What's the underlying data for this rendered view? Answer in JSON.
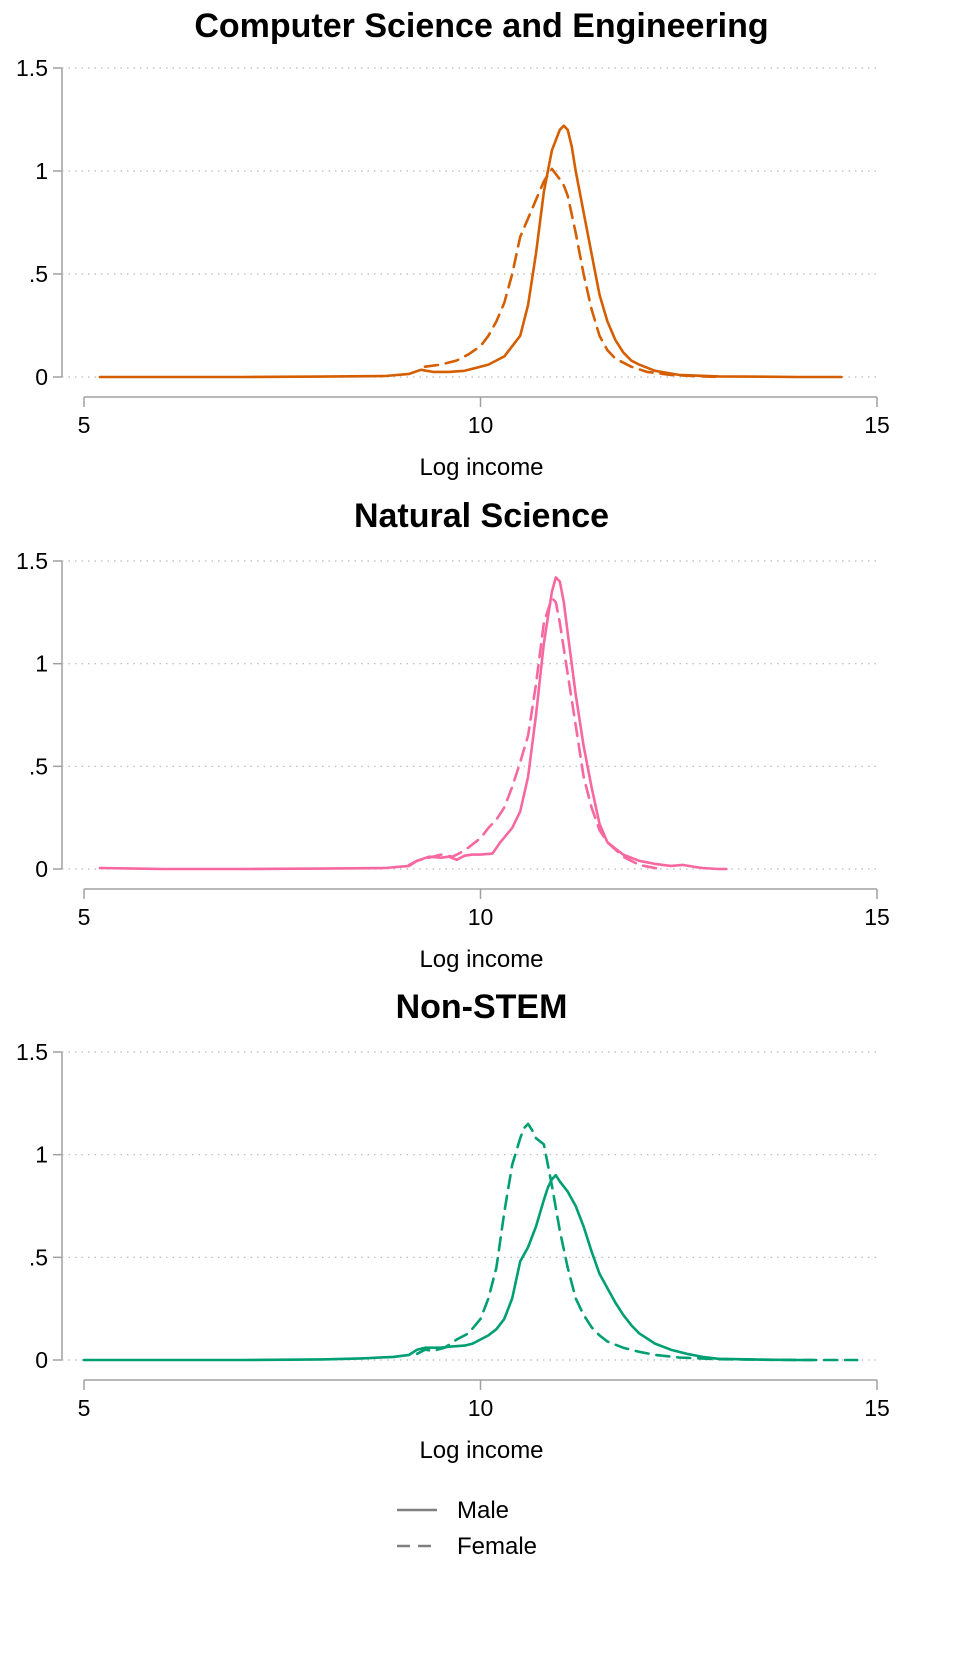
{
  "chart_data": [
    {
      "type": "line",
      "title": "Computer Science and Engineering",
      "xlabel": "Log income",
      "ylabel": "",
      "xlim": [
        5,
        15
      ],
      "ylim": [
        0,
        1.5
      ],
      "xticks": [
        "5",
        "10",
        "15"
      ],
      "yticks": [
        "0",
        ".5",
        "1",
        "1.5"
      ],
      "grid": "horizontal dotted",
      "color": "#D55E00",
      "series": [
        {
          "name": "Male",
          "style": "solid",
          "x": [
            5.2,
            6.0,
            7.0,
            8.0,
            8.8,
            9.1,
            9.25,
            9.4,
            9.6,
            9.8,
            9.95,
            10.1,
            10.3,
            10.5,
            10.6,
            10.7,
            10.8,
            10.9,
            11.0,
            11.05,
            11.1,
            11.15,
            11.2,
            11.3,
            11.4,
            11.5,
            11.6,
            11.7,
            11.8,
            11.9,
            12.0,
            12.2,
            12.5,
            13.0,
            14.0,
            14.55
          ],
          "y": [
            0,
            0,
            0,
            0.002,
            0.005,
            0.015,
            0.035,
            0.025,
            0.025,
            0.03,
            0.045,
            0.06,
            0.1,
            0.2,
            0.35,
            0.6,
            0.9,
            1.1,
            1.2,
            1.22,
            1.2,
            1.12,
            1.0,
            0.8,
            0.6,
            0.4,
            0.27,
            0.18,
            0.12,
            0.08,
            0.06,
            0.03,
            0.01,
            0.003,
            0,
            0
          ]
        },
        {
          "name": "Female",
          "style": "dashed",
          "x": [
            9.3,
            9.5,
            9.7,
            9.85,
            10.0,
            10.1,
            10.2,
            10.3,
            10.4,
            10.5,
            10.6,
            10.7,
            10.8,
            10.9,
            11.0,
            11.05,
            11.1,
            11.2,
            11.3,
            11.4,
            11.5,
            11.6,
            11.7,
            11.9,
            12.1,
            12.4,
            12.8,
            13.0
          ],
          "y": [
            0.05,
            0.06,
            0.08,
            0.11,
            0.15,
            0.2,
            0.27,
            0.36,
            0.5,
            0.68,
            0.77,
            0.86,
            0.95,
            1.01,
            0.96,
            0.93,
            0.88,
            0.7,
            0.5,
            0.33,
            0.2,
            0.13,
            0.09,
            0.05,
            0.025,
            0.01,
            0.003,
            0
          ]
        }
      ]
    },
    {
      "type": "line",
      "title": "Natural Science",
      "xlabel": "Log income",
      "ylabel": "",
      "xlim": [
        5,
        15
      ],
      "ylim": [
        0,
        1.5
      ],
      "xticks": [
        "5",
        "10",
        "15"
      ],
      "yticks": [
        "0",
        ".5",
        "1",
        "1.5"
      ],
      "grid": "horizontal dotted",
      "color": "#F768A1",
      "series": [
        {
          "name": "Male",
          "style": "solid",
          "x": [
            5.2,
            6.0,
            7.0,
            8.0,
            8.8,
            9.1,
            9.2,
            9.35,
            9.5,
            9.6,
            9.7,
            9.8,
            9.9,
            10.0,
            10.15,
            10.25,
            10.4,
            10.5,
            10.6,
            10.7,
            10.8,
            10.9,
            10.95,
            11.0,
            11.05,
            11.1,
            11.15,
            11.2,
            11.3,
            11.4,
            11.5,
            11.6,
            11.7,
            11.8,
            12.0,
            12.2,
            12.4,
            12.55,
            12.7,
            12.8,
            13.0,
            13.1
          ],
          "y": [
            0.005,
            0,
            0,
            0.002,
            0.005,
            0.015,
            0.04,
            0.06,
            0.055,
            0.06,
            0.045,
            0.065,
            0.07,
            0.07,
            0.075,
            0.13,
            0.2,
            0.28,
            0.45,
            0.75,
            1.1,
            1.35,
            1.42,
            1.4,
            1.3,
            1.15,
            1.0,
            0.85,
            0.6,
            0.4,
            0.22,
            0.13,
            0.1,
            0.07,
            0.04,
            0.025,
            0.015,
            0.02,
            0.01,
            0.005,
            0,
            0
          ]
        },
        {
          "name": "Female",
          "style": "dashed",
          "x": [
            9.1,
            9.2,
            9.35,
            9.5,
            9.65,
            9.8,
            10.0,
            10.1,
            10.2,
            10.3,
            10.4,
            10.5,
            10.6,
            10.7,
            10.8,
            10.9,
            10.95,
            11.0,
            11.1,
            11.2,
            11.3,
            11.4,
            11.5,
            11.6,
            11.8,
            12.0,
            12.2,
            12.3
          ],
          "y": [
            0.02,
            0.04,
            0.055,
            0.07,
            0.06,
            0.09,
            0.15,
            0.2,
            0.24,
            0.3,
            0.4,
            0.52,
            0.65,
            0.9,
            1.2,
            1.32,
            1.3,
            1.2,
            0.95,
            0.7,
            0.45,
            0.3,
            0.19,
            0.13,
            0.06,
            0.02,
            0.005,
            0
          ]
        }
      ]
    },
    {
      "type": "line",
      "title": "Non-STEM",
      "xlabel": "Log income",
      "ylabel": "",
      "xlim": [
        5,
        15
      ],
      "ylim": [
        0,
        1.5
      ],
      "xticks": [
        "5",
        "10",
        "15"
      ],
      "yticks": [
        "0",
        ".5",
        "1",
        "1.5"
      ],
      "grid": "horizontal dotted",
      "color": "#009E73",
      "series": [
        {
          "name": "Male",
          "style": "solid",
          "x": [
            5.0,
            6.0,
            7.0,
            8.0,
            8.5,
            8.9,
            9.1,
            9.2,
            9.3,
            9.5,
            9.6,
            9.8,
            9.9,
            10.0,
            10.1,
            10.2,
            10.3,
            10.4,
            10.5,
            10.6,
            10.7,
            10.8,
            10.85,
            10.9,
            10.95,
            11.0,
            11.1,
            11.2,
            11.3,
            11.4,
            11.5,
            11.6,
            11.7,
            11.8,
            11.9,
            12.0,
            12.2,
            12.4,
            12.6,
            12.8,
            13.0,
            13.5,
            14.0,
            14.2
          ],
          "y": [
            0,
            0,
            0,
            0.003,
            0.008,
            0.015,
            0.025,
            0.05,
            0.06,
            0.06,
            0.065,
            0.07,
            0.08,
            0.1,
            0.12,
            0.15,
            0.2,
            0.3,
            0.48,
            0.55,
            0.65,
            0.78,
            0.84,
            0.88,
            0.9,
            0.87,
            0.82,
            0.75,
            0.65,
            0.53,
            0.42,
            0.35,
            0.28,
            0.22,
            0.17,
            0.13,
            0.08,
            0.05,
            0.03,
            0.015,
            0.006,
            0.002,
            0,
            0
          ]
        },
        {
          "name": "Female",
          "style": "dashed",
          "x": [
            9.2,
            9.3,
            9.4,
            9.55,
            9.7,
            9.85,
            10.0,
            10.1,
            10.2,
            10.3,
            10.4,
            10.5,
            10.55,
            10.6,
            10.65,
            10.7,
            10.8,
            10.9,
            11.0,
            11.1,
            11.2,
            11.3,
            11.4,
            11.5,
            11.6,
            11.8,
            12.0,
            12.2,
            12.5,
            13.0,
            14.0,
            14.75
          ],
          "y": [
            0.03,
            0.05,
            0.045,
            0.06,
            0.1,
            0.13,
            0.2,
            0.3,
            0.45,
            0.72,
            0.95,
            1.08,
            1.13,
            1.15,
            1.12,
            1.08,
            1.05,
            0.85,
            0.63,
            0.45,
            0.3,
            0.22,
            0.16,
            0.12,
            0.09,
            0.06,
            0.04,
            0.025,
            0.012,
            0.004,
            0,
            0
          ]
        }
      ]
    }
  ],
  "legend": {
    "placement": "bottom-center",
    "items": [
      {
        "label": "Male",
        "style": "solid",
        "color": "#808080"
      },
      {
        "label": "Female",
        "style": "dashed",
        "color": "#808080"
      }
    ]
  }
}
